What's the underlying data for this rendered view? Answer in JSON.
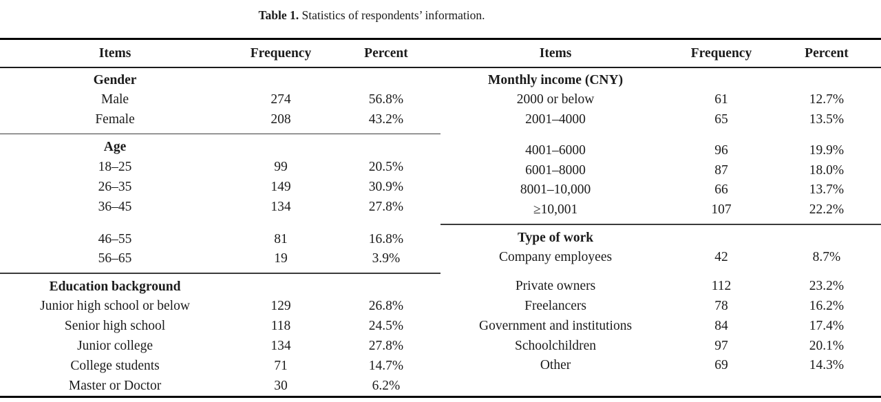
{
  "caption": {
    "label": "Table 1.",
    "text": " Statistics of respondents’ information."
  },
  "columns": {
    "items": "Items",
    "frequency": "Frequency",
    "percent": "Percent"
  },
  "left": {
    "sections": [
      {
        "title": "Gender",
        "rows": [
          {
            "item": "Male",
            "freq": "274",
            "pct": "56.8%"
          },
          {
            "item": "Female",
            "freq": "208",
            "pct": "43.2%"
          }
        ]
      },
      {
        "title": "Age",
        "rows": [
          {
            "item": "18–25",
            "freq": "99",
            "pct": "20.5%"
          },
          {
            "item": "26–35",
            "freq": "149",
            "pct": "30.9%"
          },
          {
            "item": "36–45",
            "freq": "134",
            "pct": "27.8%"
          },
          {
            "item": "46–55",
            "freq": "81",
            "pct": "16.8%"
          },
          {
            "item": "56–65",
            "freq": "19",
            "pct": "3.9%"
          }
        ]
      },
      {
        "title": "Education background",
        "rows": [
          {
            "item": "Junior high school or below",
            "freq": "129",
            "pct": "26.8%"
          },
          {
            "item": "Senior high school",
            "freq": "118",
            "pct": "24.5%"
          },
          {
            "item": "Junior college",
            "freq": "134",
            "pct": "27.8%"
          },
          {
            "item": "College students",
            "freq": "71",
            "pct": "14.7%"
          },
          {
            "item": "Master or Doctor",
            "freq": "30",
            "pct": "6.2%"
          }
        ]
      }
    ]
  },
  "right": {
    "sections": [
      {
        "title": "Monthly income (CNY)",
        "rows": [
          {
            "item": "2000 or below",
            "freq": "61",
            "pct": "12.7%"
          },
          {
            "item": "2001–4000",
            "freq": "65",
            "pct": "13.5%"
          },
          {
            "item": "4001–6000",
            "freq": "96",
            "pct": "19.9%"
          },
          {
            "item": "6001–8000",
            "freq": "87",
            "pct": "18.0%"
          },
          {
            "item": "8001–10,000",
            "freq": "66",
            "pct": "13.7%"
          },
          {
            "item": "≥10,001",
            "freq": "107",
            "pct": "22.2%"
          }
        ]
      },
      {
        "title": "Type of work",
        "rows": [
          {
            "item": "Company employees",
            "freq": "42",
            "pct": "8.7%"
          },
          {
            "item": "Private owners",
            "freq": "112",
            "pct": "23.2%"
          },
          {
            "item": "Freelancers",
            "freq": "78",
            "pct": "16.2%"
          },
          {
            "item": "Government and institutions",
            "freq": "84",
            "pct": "17.4%"
          },
          {
            "item": "Schoolchildren",
            "freq": "97",
            "pct": "20.1%"
          },
          {
            "item": "Other",
            "freq": "69",
            "pct": "14.3%"
          }
        ]
      }
    ]
  }
}
